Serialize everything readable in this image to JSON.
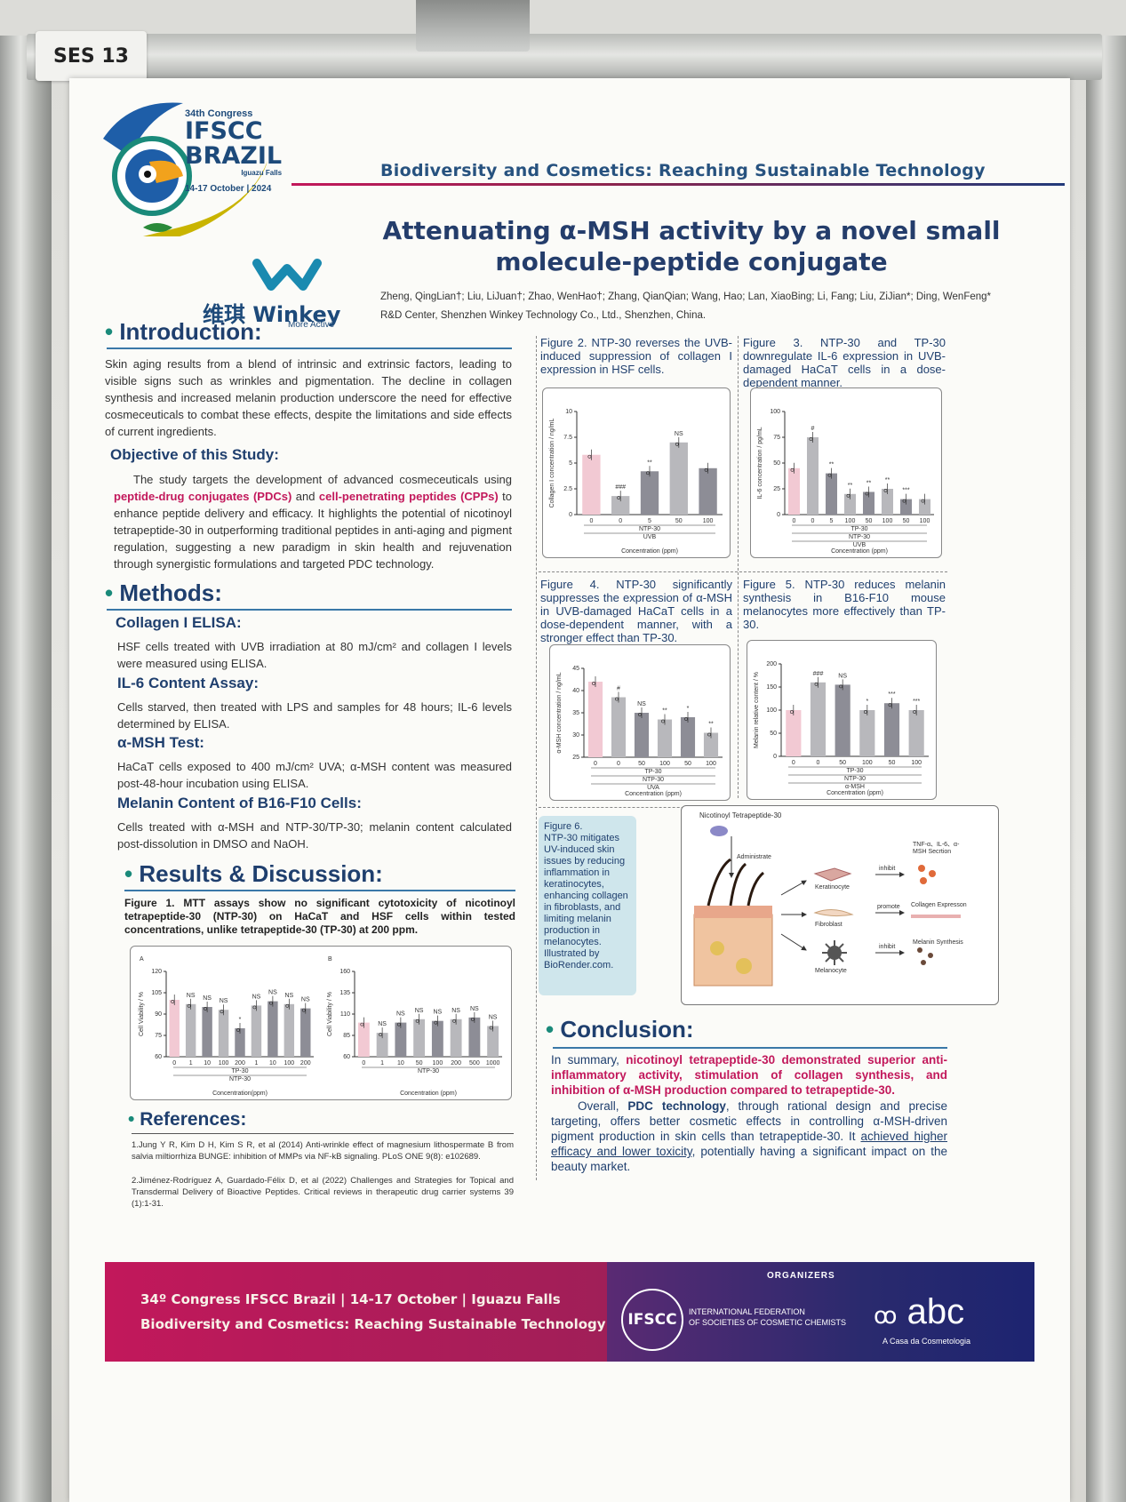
{
  "sticker": "SES 13",
  "header": {
    "congress_num": "34th Congress",
    "ifscc": "IFSCC",
    "brazil": "BRAZIL",
    "place": "Iguazu Falls",
    "dates": "14-17 October | 2024",
    "theme": "Biodiversity and Cosmetics: Reaching Sustainable Technology",
    "title_line1": "Attenuating α-MSH activity by a novel small",
    "title_line2": "molecule-peptide conjugate",
    "company_cn": "维琪",
    "company_en": "Winkey",
    "company_tag": "More Active",
    "authors": "Zheng, QingLian†; Liu, LiJuan†; Zhao, WenHao†; Zhang, QianQian; Wang, Hao; Lan, XiaoBing; Li, Fang; Liu, ZiJian*; Ding, WenFeng*",
    "affiliation": "R&D Center, Shenzhen Winkey Technology Co., Ltd., Shenzhen, China."
  },
  "intro": {
    "heading": "Introduction:",
    "text": "Skin aging results from a blend of intrinsic and extrinsic factors, leading to visible signs such as wrinkles and pigmentation. The decline in collagen synthesis and increased melanin production underscore the need for effective cosmeceuticals to combat these effects, despite the limitations and side effects of current ingredients.",
    "objective_heading": "Objective of this Study:",
    "obj_a": "The study targets the development of advanced cosmeceuticals using ",
    "obj_pdc": "peptide-drug conjugates (PDCs)",
    "obj_b": " and ",
    "obj_cpp": "cell-penetrating peptides (CPPs)",
    "obj_c": " to enhance peptide delivery and efficacy. It highlights the potential of nicotinoyl tetrapeptide-30 in outperforming traditional peptides in anti-aging and pigment regulation, suggesting a new paradigm in skin health and rejuvenation through synergistic formulations and targeted PDC technology."
  },
  "methods": {
    "heading": "Methods:",
    "items": [
      {
        "title": "Collagen I ELISA:",
        "text": "HSF cells treated with UVB irradiation at 80 mJ/cm² and collagen I levels were measured using ELISA."
      },
      {
        "title": "IL-6 Content Assay:",
        "text": "Cells starved, then treated with LPS and samples for 48 hours; IL-6 levels determined by ELISA."
      },
      {
        "title": "α-MSH Test:",
        "text": "HaCaT cells exposed to 400 mJ/cm² UVA; α-MSH content was measured post-48-hour incubation using ELISA."
      },
      {
        "title": "Melanin Content of B16-F10 Cells:",
        "text": "Cells treated with α-MSH and NTP-30/TP-30; melanin content calculated post-dissolution in DMSO and NaOH."
      }
    ]
  },
  "results": {
    "heading": "Results & Discussion:",
    "fig1_caption": "Figure 1. MTT assays show no significant cytotoxicity of nicotinoyl tetrapeptide-30 (NTP-30) on HaCaT and HSF cells within tested concentrations, unlike tetrapeptide-30 (TP-30) at 200 ppm."
  },
  "references": {
    "heading": "References:",
    "items": [
      "1.Jung Y R, Kim D H, Kim S R, et al (2014) Anti-wrinkle effect of magnesium lithospermate B from salvia miltiorrhiza BUNGE: inhibition of MMPs via NF-kB signaling. PLoS ONE 9(8): e102689.",
      "2.Jiménez-Rodríguez A, Guardado-Félix D, et al (2022) Challenges and Strategies for Topical and Transdermal Delivery of Bioactive Peptides. Critical reviews in therapeutic drug carrier systems 39 (1):1-31."
    ]
  },
  "figures": {
    "fig2": "Figure 2. NTP-30 reverses the UVB-induced suppression of collagen I expression in HSF cells.",
    "fig3": "Figure 3. NTP-30 and TP-30 downregulate IL-6 expression in UVB-damaged HaCaT cells in a dose-dependent manner.",
    "fig4": "Figure 4. NTP-30 significantly suppresses the expression of α-MSH in UVB-damaged HaCaT cells in a dose-dependent manner, with a stronger effect than TP-30.",
    "fig5": "Figure 5. NTP-30 reduces melanin synthesis in B16-F10 mouse melanocytes more effectively than TP-30.",
    "fig6_title": "Figure 6.",
    "fig6": "NTP-30 mitigates UV-induced skin issues by reducing inflammation in keratinocytes, enhancing collagen in fibroblasts, and limiting melanin production in melanocytes. Illustrated by BioRender.com."
  },
  "fig6_diagram": {
    "top": "Nicotinoyl Tetrapeptide-30",
    "administrate": "Administrate",
    "keratinocyte": "Keratinocyte",
    "fibroblast": "Fibroblast",
    "melanocyte": "Melanocyte",
    "inhibit1": "inhibit",
    "promote": "promote",
    "inhibit2": "inhibit",
    "out1": "TNF-α、IL-6、α-MSH Secrtion",
    "out2": "Collagen Expresson",
    "out3": "Melanin Synthesis"
  },
  "conclusion": {
    "heading": "Conclusion:",
    "p1a": "In summary, ",
    "p1b": "nicotinoyl tetrapeptide-30 demonstrated superior anti-inflammatory activity, stimulation of collagen synthesis, and inhibition of α-MSH production compared to tetrapeptide-30.",
    "p2a": "Overall, ",
    "p2b": "PDC technology",
    "p2c": ", through rational design and precise targeting, offers better cosmetic effects in controlling α-MSH-driven pigment production in skin cells than tetrapeptide-30. It ",
    "p2d": "achieved higher efficacy and lower toxicity",
    "p2e": ", potentially having a significant impact on the beauty market."
  },
  "footer": {
    "line1": "34º Congress IFSCC Brazil | 14-17 October | Iguazu Falls",
    "line2": "Biodiversity and Cosmetics: Reaching Sustainable Technology",
    "organizers": "ORGANIZERS",
    "ifscc": "IFSCC",
    "ifscc_full1": "INTERNATIONAL FEDERATION",
    "ifscc_full2": "OF SOCIETIES OF COSMETIC CHEMISTS",
    "abc": "abc",
    "abc_sub": "A Casa da Cosmetologia"
  },
  "colors": {
    "accent": "#c2185b",
    "navy": "#1f3f6e",
    "teal": "#1a8a7a",
    "bar_pink": "#f2c9d3",
    "bar_grey": "#b8b8bc",
    "bar_dark": "#8d8d96"
  },
  "chart_data": [
    {
      "id": "fig1A",
      "type": "bar",
      "panel": "A",
      "ylabel": "Cell Viability / %",
      "ylim": [
        60,
        120
      ],
      "categories": [
        "0",
        "1",
        "10",
        "100",
        "200",
        "1",
        "10",
        "100",
        "200"
      ],
      "values": [
        100,
        97,
        95,
        93,
        80,
        96,
        99,
        97,
        94
      ],
      "group_labels": [
        "TP-30",
        "NTP-30"
      ],
      "xlabel": "Concentration(ppm)",
      "annotations": [
        "NS",
        "NS",
        "NS",
        "*",
        "NS",
        "NS",
        "NS",
        "NS"
      ]
    },
    {
      "id": "fig1B",
      "type": "bar",
      "panel": "B",
      "ylabel": "Cell Viability / %",
      "ylim": [
        60,
        160
      ],
      "categories": [
        "0",
        "1",
        "10",
        "50",
        "100",
        "200",
        "500",
        "1000"
      ],
      "values": [
        100,
        88,
        100,
        104,
        102,
        104,
        106,
        96
      ],
      "group_labels": [
        "NTP-30"
      ],
      "xlabel": "Concentration (ppm)",
      "annotations": [
        "NS",
        "NS",
        "NS",
        "NS",
        "NS",
        "NS",
        "NS"
      ]
    },
    {
      "id": "fig2",
      "type": "bar",
      "ylabel": "Collagen I concentration / ng/mL",
      "ylim": [
        0,
        10
      ],
      "categories": [
        "0",
        "0",
        "5",
        "50",
        "100"
      ],
      "values": [
        5.8,
        1.8,
        4.2,
        7.0,
        4.5
      ],
      "group_labels": [
        "NTP-30",
        "UVB"
      ],
      "xlabel": "Concentration (ppm)",
      "annotations": [
        "###",
        "**",
        "NS"
      ]
    },
    {
      "id": "fig3",
      "type": "bar",
      "ylabel": "IL-6 concentration / pg/mL",
      "ylim": [
        0,
        100
      ],
      "categories": [
        "0",
        "0",
        "5",
        "100",
        "50",
        "100",
        "50",
        "100"
      ],
      "values": [
        45,
        75,
        40,
        20,
        22,
        25,
        15,
        15
      ],
      "group_labels": [
        "TP-30",
        "NTP-30",
        "UVB"
      ],
      "xlabel": "Concentration (ppm)",
      "annotations": [
        "#",
        "**",
        "**",
        "**",
        "**",
        "***"
      ]
    },
    {
      "id": "fig4",
      "type": "bar",
      "ylabel": "α-MSH concentration / ng/mL",
      "ylim": [
        25,
        45
      ],
      "categories": [
        "0",
        "0",
        "50",
        "100",
        "50",
        "100"
      ],
      "values": [
        42,
        38.5,
        35,
        33.5,
        34,
        30.5
      ],
      "group_labels": [
        "TP-30",
        "NTP-30",
        "UVA"
      ],
      "xlabel": "Concentration (ppm)",
      "annotations": [
        "#",
        "NS",
        "**",
        "*",
        "**"
      ]
    },
    {
      "id": "fig5",
      "type": "bar",
      "ylabel": "Melanin relative content / %",
      "ylim": [
        0,
        200
      ],
      "categories": [
        "0",
        "0",
        "50",
        "100",
        "50",
        "100"
      ],
      "values": [
        100,
        160,
        155,
        100,
        115,
        100
      ],
      "group_labels": [
        "TP-30",
        "NTP-30",
        "α-MSH"
      ],
      "xlabel": "Concentration (ppm)",
      "annotations": [
        "###",
        "NS",
        "*",
        "***",
        "***"
      ]
    }
  ]
}
